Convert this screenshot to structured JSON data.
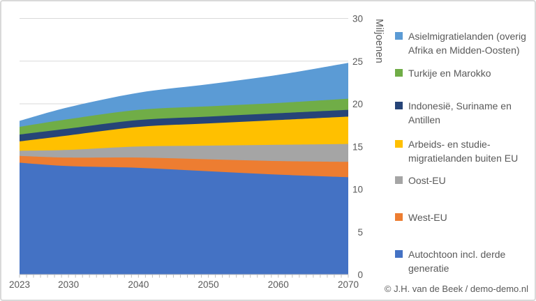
{
  "chart_data": {
    "type": "area",
    "stacked": true,
    "y_axis_title": "Miljoenen",
    "x": [
      2023,
      2030,
      2040,
      2050,
      2060,
      2070
    ],
    "x_tick_labels": [
      "2023",
      "2030",
      "2040",
      "2050",
      "2060",
      "2070"
    ],
    "x_minor_tick_step": 1,
    "xlim": [
      2023,
      2070
    ],
    "y_ticks": [
      0,
      5,
      10,
      15,
      20,
      25,
      30
    ],
    "y_tick_labels": [
      "0",
      "5",
      "10",
      "15",
      "20",
      "25",
      "30"
    ],
    "ylim": [
      0,
      30
    ],
    "grid": "horizontal",
    "legend_position": "right",
    "series": [
      {
        "name": "Autochtoon incl. derde generatie",
        "color": "#4472C4",
        "values": [
          13.1,
          12.7,
          12.5,
          12.1,
          11.7,
          11.4
        ]
      },
      {
        "name": "West-EU",
        "color": "#ED7D31",
        "values": [
          0.8,
          1.0,
          1.2,
          1.4,
          1.6,
          1.8
        ]
      },
      {
        "name": "Oost-EU",
        "color": "#A5A5A5",
        "values": [
          0.6,
          0.9,
          1.3,
          1.6,
          1.9,
          2.1
        ]
      },
      {
        "name": "Arbeids- en studie-migratielanden buiten EU",
        "color": "#FFC000",
        "values": [
          1.1,
          1.7,
          2.3,
          2.6,
          2.9,
          3.2
        ]
      },
      {
        "name": "Indonesië, Suriname en Antillen",
        "color": "#264478",
        "values": [
          0.8,
          0.8,
          0.8,
          0.8,
          0.8,
          0.8
        ]
      },
      {
        "name": "Turkije en Marokko",
        "color": "#70AD47",
        "values": [
          0.9,
          1.1,
          1.2,
          1.2,
          1.2,
          1.3
        ]
      },
      {
        "name": "Asielmigratielanden (overig Afrika en Midden-Oosten)",
        "color": "#5B9BD5",
        "values": [
          0.7,
          1.4,
          2.0,
          2.6,
          3.3,
          4.2
        ]
      }
    ],
    "axis_colors": {
      "gridline": "#D9D9D9",
      "axis_line": "#BFBFBF",
      "tick": "#BFBFBF",
      "label": "#595959"
    }
  },
  "legend": {
    "items": [
      {
        "label": "Asielmigratielanden (overig\nAfrika en Midden-Oosten)",
        "color": "#5B9BD5"
      },
      {
        "label": "Turkije en Marokko",
        "color": "#70AD47"
      },
      {
        "label": "Indonesië, Suriname en\nAntillen",
        "color": "#264478"
      },
      {
        "label": "Arbeids- en studie-\nmigratielanden buiten EU",
        "color": "#FFC000"
      },
      {
        "label": "Oost-EU",
        "color": "#A5A5A5"
      },
      {
        "label": "West-EU",
        "color": "#ED7D31"
      },
      {
        "label": "Autochtoon incl. derde\ngeneratie",
        "color": "#4472C4"
      }
    ]
  },
  "footer": {
    "credit": "© J.H. van de Beek / demo-demo.nl"
  }
}
